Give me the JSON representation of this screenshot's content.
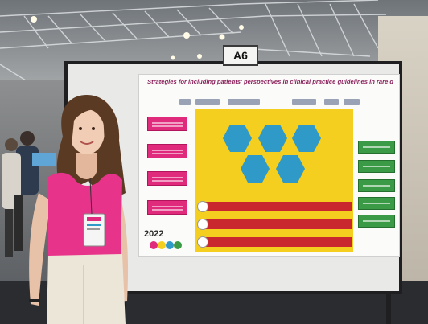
{
  "booth_sign": "A6",
  "poster": {
    "title": "Strategies for including patients' perspectives in clinical practice guidelines in rare diseases",
    "conference_logo_text": "2022"
  },
  "colors": {
    "poster_title": "#8a1f5a",
    "intro_boxes": "#e02a7c",
    "methods_panel": "#f4cf1f",
    "hexagons": "#2f99c8",
    "results_bars": "#c8282e",
    "conclusion_boxes": "#3a9a45",
    "top_shirt": "#e8338a",
    "pants": "#ece6d8"
  }
}
